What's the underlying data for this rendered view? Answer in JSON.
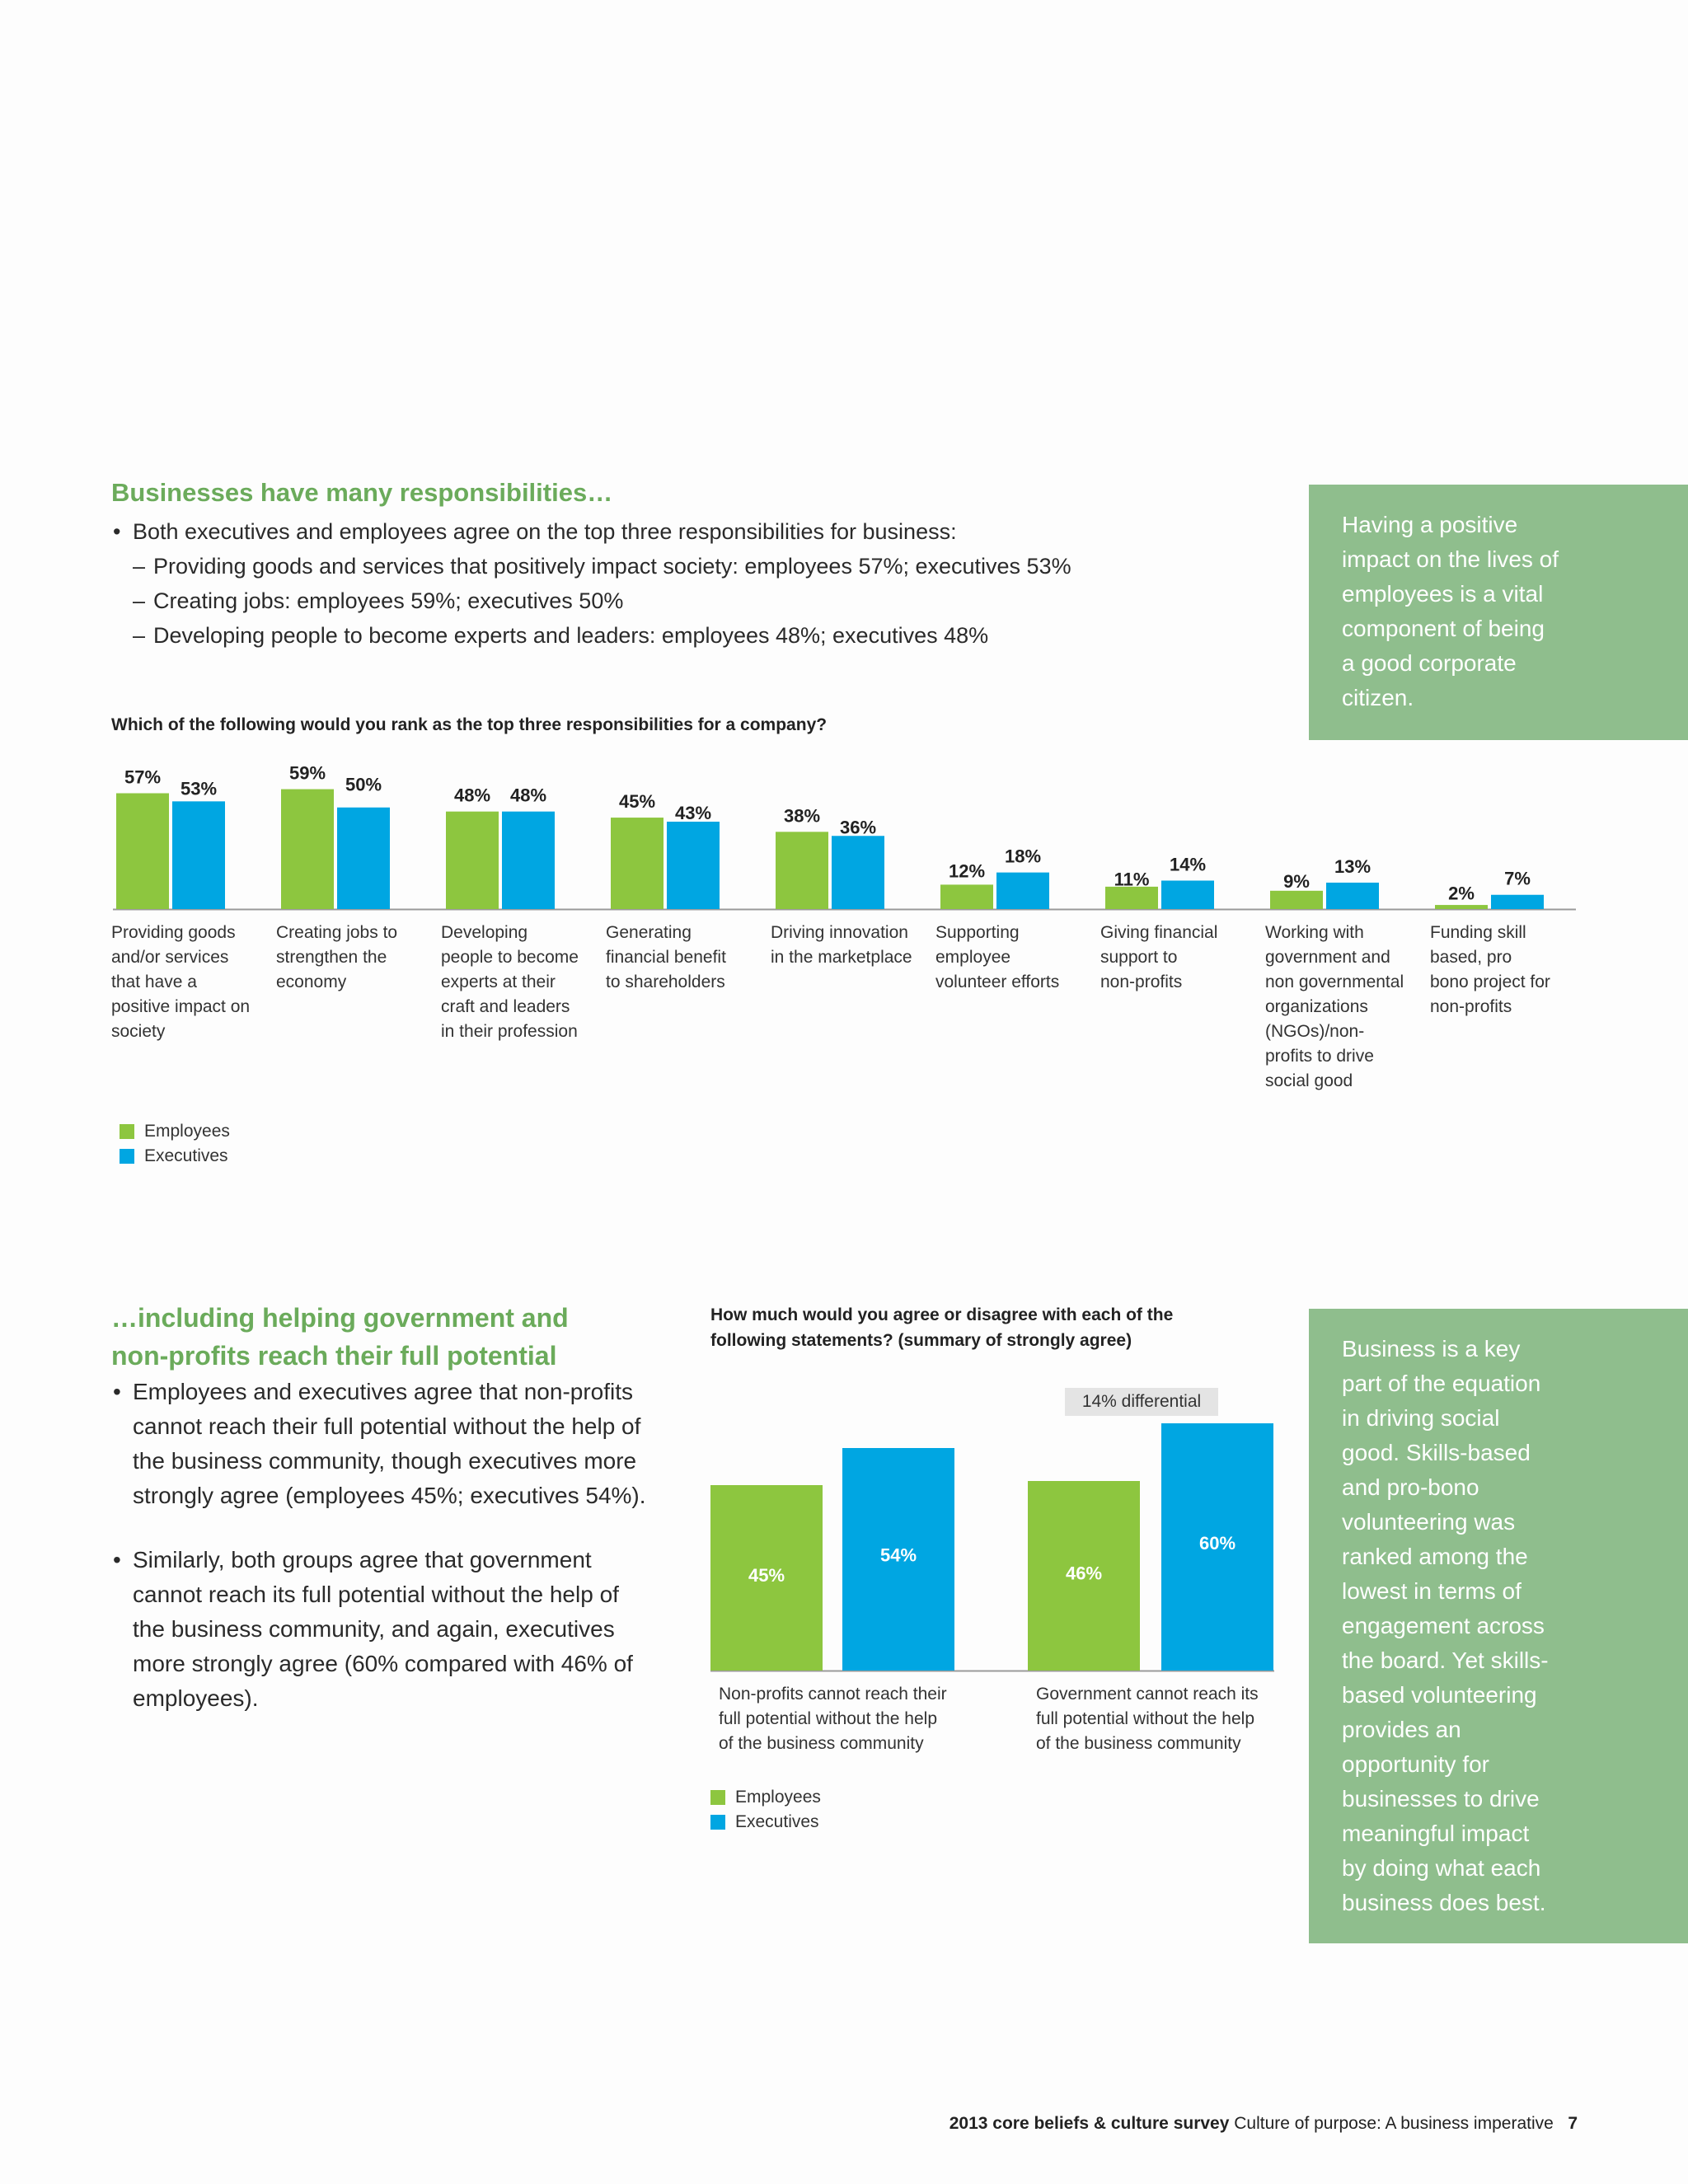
{
  "colors": {
    "employees": "#8dc63f",
    "executives": "#00a6e2",
    "accent_green": "#6bab5b",
    "callout_bg": "#8fbe8d"
  },
  "section1": {
    "title": "Businesses have many responsibilities…",
    "bullet": "Both executives and employees agree on the top three responsibilities for business:",
    "dashes": [
      "Providing goods and services that positively impact society: employees 57%; executives 53%",
      "Creating jobs: employees 59%; executives 50%",
      "Developing people to become experts and leaders: employees 48%; executives 48%"
    ],
    "question": "Which of the following would you rank as the top three responsibilities for a company?",
    "callout": [
      "Having a positive",
      "impact on the lives of",
      "employees is a vital",
      "component of being",
      "a good corporate",
      "citizen."
    ]
  },
  "legend": {
    "employees": "Employees",
    "executives": "Executives"
  },
  "section2": {
    "title_lines": [
      "…including helping government and",
      "non-profits reach their full potential"
    ],
    "bullets": [
      [
        "Employees and executives agree that non-profits",
        "cannot reach their full potential without the help of",
        "the business community, though executives more",
        "strongly agree (employees 45%; executives 54%)."
      ],
      [
        "Similarly, both groups agree that government",
        "cannot reach its full potential without the help of",
        "the business community, and again, executives",
        "more strongly agree (60% compared with 46% of",
        "employees)."
      ]
    ],
    "question_lines": [
      "How much would you agree or disagree with each of the",
      "following statements? (summary of strongly agree)"
    ],
    "differential": "14% differential",
    "callout": [
      "Business is a key",
      "part of the equation",
      "in driving social",
      "good. Skills-based",
      "and pro-bono",
      "volunteering was",
      "ranked among the",
      "lowest in terms of",
      "engagement across",
      "the board. Yet skills-",
      "based volunteering",
      "provides an",
      "opportunity for",
      "businesses to drive",
      "meaningful impact",
      "by doing what each",
      "business does best."
    ]
  },
  "chart_data": [
    {
      "type": "bar",
      "title": "Which of the following would you rank as the top three responsibilities for a company?",
      "categories": [
        "Providing goods and/or services that have a positive impact on society",
        "Creating jobs to strengthen the economy",
        "Developing people to become experts at their craft and leaders in their profession",
        "Generating financial benefit to shareholders",
        "Driving innovation in the marketplace",
        "Supporting employee volunteer efforts",
        "Giving financial support to non-profits",
        "Working with government and non governmental organizations (NGOs)/non-profits to drive social good",
        "Funding skill based, pro bono project for non-profits"
      ],
      "category_lines": [
        [
          "Providing goods",
          "and/or services",
          "that have a",
          "positive impact on",
          "society"
        ],
        [
          "Creating jobs to",
          "strengthen the",
          "economy"
        ],
        [
          "Developing",
          "people to become",
          "experts at their",
          "craft and leaders",
          "in their profession"
        ],
        [
          "Generating",
          "financial benefit",
          "to shareholders"
        ],
        [
          "Driving innovation",
          "in the marketplace"
        ],
        [
          "Supporting",
          "employee",
          "volunteer efforts"
        ],
        [
          "Giving financial",
          "support to",
          "non-profits"
        ],
        [
          "Working with",
          "government and",
          "non governmental",
          "organizations",
          "(NGOs)/non-",
          "profits to drive",
          "social good"
        ],
        [
          "Funding skill",
          "based, pro",
          "bono project for",
          "non-profits"
        ]
      ],
      "series": [
        {
          "name": "Employees",
          "values": [
            57,
            59,
            48,
            45,
            38,
            12,
            11,
            9,
            2
          ],
          "labels": [
            "57%",
            "59%",
            "48%",
            "45%",
            "38%",
            "12%",
            "11%",
            "9%",
            "2%"
          ]
        },
        {
          "name": "Executives",
          "values": [
            53,
            50,
            48,
            43,
            36,
            18,
            14,
            13,
            7
          ],
          "labels": [
            "53%",
            "50%",
            "48%",
            "43%",
            "36%",
            "18%",
            "14%",
            "13%",
            "7%"
          ]
        }
      ],
      "ylim": [
        0,
        62
      ],
      "unit": "%",
      "legend": "bottom-left"
    },
    {
      "type": "bar",
      "title": "How much would you agree or disagree with each of the following statements? (summary of strongly agree)",
      "categories": [
        "Non-profits cannot reach their full potential without the help of the business community",
        "Government cannot reach its full potential without the help of the business community"
      ],
      "category_lines": [
        [
          "Non-profits cannot reach their",
          "full potential without the help",
          "of the business community"
        ],
        [
          "Government cannot reach its",
          "full potential without the help",
          "of the business community"
        ]
      ],
      "series": [
        {
          "name": "Employees",
          "values": [
            45,
            46
          ],
          "labels": [
            "45%",
            "46%"
          ]
        },
        {
          "name": "Executives",
          "values": [
            54,
            60
          ],
          "labels": [
            "54%",
            "60%"
          ]
        }
      ],
      "ylim": [
        0,
        60
      ],
      "unit": "%",
      "legend": "bottom-left"
    }
  ],
  "footer": {
    "bold": "2013 core beliefs & culture survey",
    "normal": "Culture of purpose: A business imperative",
    "page": "7"
  }
}
